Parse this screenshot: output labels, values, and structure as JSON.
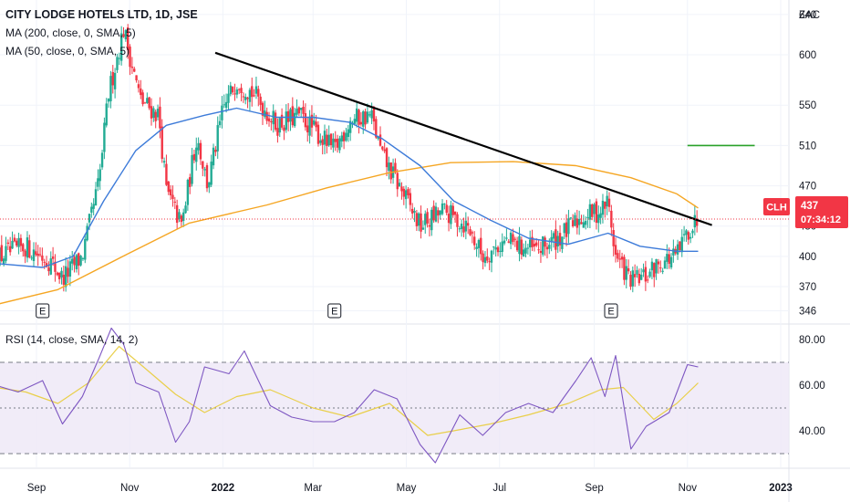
{
  "header": {
    "title": "CITY LODGE HOTELS LTD, 1D, JSE",
    "ma200": "MA (200, close, 0, SMA, 5)",
    "ma50": "MA (50, close, 0, SMA, 5)",
    "rsi": "RSI (14, close, SMA, 14, 2)"
  },
  "currency": "ZAC",
  "price_badge": {
    "symbol": "CLH",
    "price": "437",
    "countdown": "07:34:12",
    "color": "#f23645"
  },
  "earnings_marker": "E",
  "colors": {
    "up": "#22ab94",
    "down": "#f23645",
    "ma50": "#3d7bd9",
    "ma200": "#f5a623",
    "trendline": "#000000",
    "level": "#2aa12a",
    "rsi": "#7e57c2",
    "rsi_ma": "#f2e27a",
    "rsi_band": "#ede7f6"
  },
  "chart_data": [
    {
      "type": "candlestick",
      "title": "CITY LODGE HOTELS LTD, 1D, JSE",
      "ylabel": "ZAC",
      "ylim": [
        343,
        650
      ],
      "y_ticks": [
        "346",
        "370",
        "400",
        "430",
        "470",
        "510",
        "550",
        "600",
        "640"
      ],
      "x_ticks": [
        "Sep",
        "Nov",
        "2022",
        "Mar",
        "May",
        "Jul",
        "Sep",
        "Nov",
        "2023"
      ],
      "close_path": {
        "x": [
          "2021-08-05",
          "2021-08-25",
          "2021-09-10",
          "2021-09-18",
          "2021-10-01",
          "2021-10-12",
          "2021-10-18",
          "2021-10-28",
          "2021-11-08",
          "2021-11-20",
          "2021-11-25",
          "2021-12-05",
          "2021-12-15",
          "2021-12-22",
          "2022-01-01",
          "2022-01-10",
          "2022-01-22",
          "2022-02-05",
          "2022-02-20",
          "2022-03-05",
          "2022-03-15",
          "2022-03-25",
          "2022-04-08",
          "2022-04-15",
          "2022-04-28",
          "2022-05-10",
          "2022-05-25",
          "2022-06-10",
          "2022-06-20",
          "2022-07-05",
          "2022-07-25",
          "2022-08-10",
          "2022-08-25",
          "2022-09-05",
          "2022-09-10",
          "2022-09-15",
          "2022-09-25",
          "2022-10-05",
          "2022-10-15",
          "2022-10-25",
          "2022-11-01",
          "2022-11-08"
        ],
        "y": [
          398,
          410,
          395,
          378,
          400,
          475,
          560,
          625,
          555,
          540,
          465,
          430,
          520,
          470,
          545,
          575,
          560,
          530,
          540,
          520,
          505,
          535,
          540,
          500,
          465,
          430,
          445,
          430,
          400,
          415,
          405,
          420,
          440,
          445,
          455,
          400,
          375,
          380,
          395,
          400,
          425,
          437
        ]
      },
      "series": [
        {
          "name": "MA (200, close, 0, SMA, 5)",
          "x": [
            "2021-08-05",
            "2021-09-15",
            "2021-10-30",
            "2021-12-10",
            "2022-01-30",
            "2022-03-10",
            "2022-04-20",
            "2022-05-30",
            "2022-07-10",
            "2022-08-20",
            "2022-09-25",
            "2022-10-25",
            "2022-11-08"
          ],
          "values": [
            352,
            367,
            402,
            433,
            451,
            468,
            483,
            493,
            494,
            490,
            478,
            462,
            448
          ]
        },
        {
          "name": "MA (50, close, 0, SMA, 5)",
          "x": [
            "2021-08-05",
            "2021-09-05",
            "2021-09-25",
            "2021-10-15",
            "2021-11-05",
            "2021-11-25",
            "2021-12-20",
            "2022-01-10",
            "2022-02-05",
            "2022-03-01",
            "2022-03-25",
            "2022-04-15",
            "2022-05-10",
            "2022-06-01",
            "2022-06-25",
            "2022-07-20",
            "2022-08-15",
            "2022-09-10",
            "2022-10-01",
            "2022-10-25",
            "2022-11-08"
          ],
          "values": [
            393,
            389,
            400,
            455,
            505,
            530,
            540,
            547,
            538,
            538,
            533,
            517,
            490,
            455,
            436,
            418,
            412,
            423,
            410,
            405,
            405
          ]
        }
      ],
      "trendline": {
        "x": [
          "2021-12-27",
          "2022-11-17"
        ],
        "y": [
          602,
          431
        ]
      },
      "horizontal_level": {
        "x": [
          "2022-11-01",
          "2022-12-15"
        ],
        "y": 510
      },
      "earnings_dates": [
        "2021-09-05",
        "2022-03-15",
        "2022-09-12"
      ],
      "last_price": 437
    },
    {
      "type": "line",
      "title": "RSI (14, close, SMA, 14, 2)",
      "ylim": [
        23,
        89
      ],
      "y_ticks": [
        "40.00",
        "60.00",
        "80.00"
      ],
      "band_levels": [
        30,
        50,
        70
      ],
      "series": [
        {
          "name": "RSI",
          "x": [
            "2021-08-05",
            "2021-08-20",
            "2021-09-05",
            "2021-09-18",
            "2021-10-01",
            "2021-10-12",
            "2021-10-20",
            "2021-10-28",
            "2021-11-05",
            "2021-11-20",
            "2021-12-01",
            "2021-12-10",
            "2021-12-20",
            "2022-01-05",
            "2022-01-15",
            "2022-02-01",
            "2022-02-15",
            "2022-03-01",
            "2022-03-15",
            "2022-03-28",
            "2022-04-10",
            "2022-04-25",
            "2022-05-10",
            "2022-05-20",
            "2022-06-05",
            "2022-06-20",
            "2022-07-05",
            "2022-07-20",
            "2022-08-05",
            "2022-08-20",
            "2022-08-30",
            "2022-09-08",
            "2022-09-15",
            "2022-09-25",
            "2022-10-05",
            "2022-10-20",
            "2022-11-01",
            "2022-11-08"
          ],
          "values": [
            60,
            57,
            62,
            43,
            55,
            72,
            85,
            78,
            61,
            57,
            35,
            44,
            68,
            65,
            75,
            51,
            46,
            44,
            44,
            48,
            58,
            54,
            34,
            26,
            47,
            38,
            48,
            52,
            48,
            62,
            72,
            55,
            73,
            32,
            42,
            48,
            69,
            68
          ]
        },
        {
          "name": "RSI MA",
          "x": [
            "2021-08-05",
            "2021-08-25",
            "2021-09-15",
            "2021-10-05",
            "2021-10-25",
            "2021-11-10",
            "2021-12-01",
            "2021-12-20",
            "2022-01-10",
            "2022-02-01",
            "2022-03-01",
            "2022-03-25",
            "2022-04-20",
            "2022-05-15",
            "2022-06-01",
            "2022-06-25",
            "2022-07-20",
            "2022-08-15",
            "2022-09-05",
            "2022-09-20",
            "2022-10-10",
            "2022-10-25",
            "2022-11-08"
          ],
          "values": [
            59,
            57,
            52,
            61,
            77,
            68,
            56,
            48,
            55,
            58,
            50,
            46,
            52,
            38,
            40,
            43,
            47,
            52,
            58,
            59,
            45,
            52,
            61
          ]
        }
      ]
    }
  ]
}
